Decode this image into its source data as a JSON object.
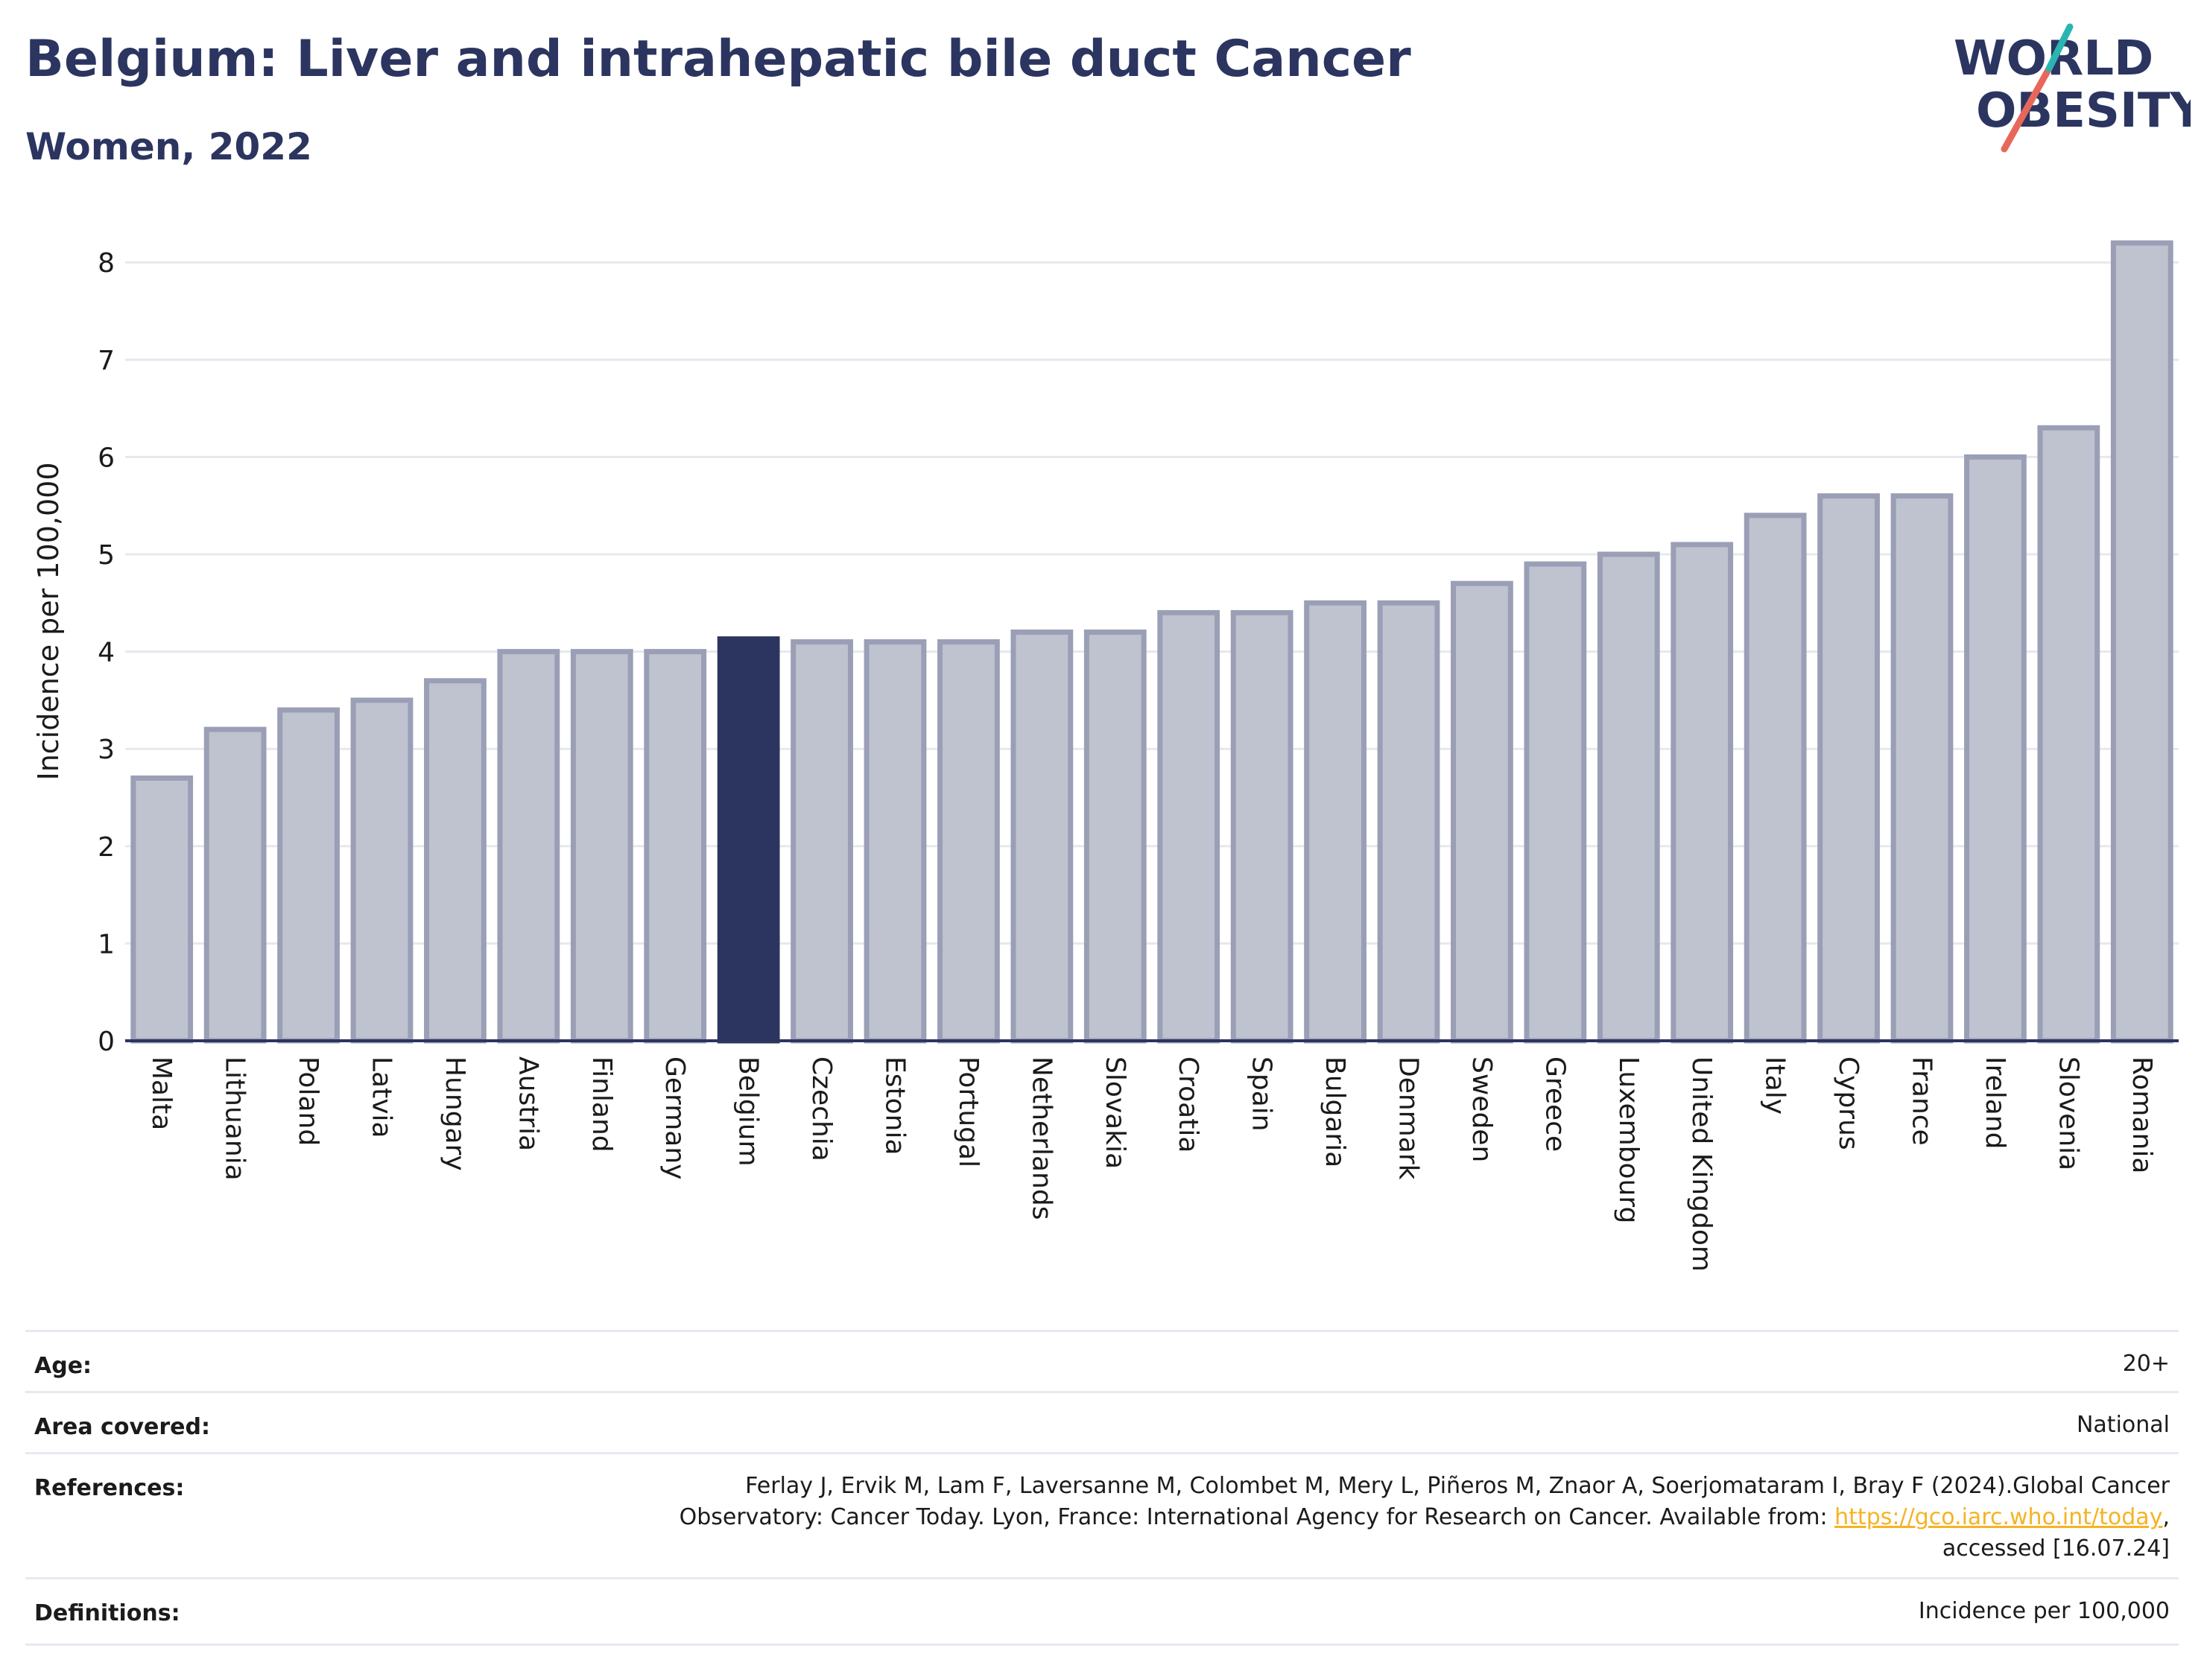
{
  "header": {
    "title": "Belgium: Liver and intrahepatic bile duct Cancer",
    "subtitle": "Women, 2022"
  },
  "logo": {
    "line1": "WORLD",
    "line2": "OBESITY"
  },
  "colors": {
    "highlight": "#2b3560",
    "bar_fill": "#bfc2cf",
    "bar_stroke": "#9a9fb6",
    "grid": "#e6e8ee"
  },
  "chart_data": {
    "type": "bar",
    "ylabel": "Incidence per 100,000",
    "ylim": [
      0,
      8.4
    ],
    "yticks": [
      0,
      1,
      2,
      3,
      4,
      5,
      6,
      7,
      8
    ],
    "grid": true,
    "highlight": "Belgium",
    "categories": [
      "Malta",
      "Lithuania",
      "Poland",
      "Latvia",
      "Hungary",
      "Austria",
      "Finland",
      "Germany",
      "Belgium",
      "Czechia",
      "Estonia",
      "Portugal",
      "Netherlands",
      "Slovakia",
      "Croatia",
      "Spain",
      "Bulgaria",
      "Denmark",
      "Sweden",
      "Greece",
      "Luxembourg",
      "United Kingdom",
      "Italy",
      "Cyprus",
      "France",
      "Ireland",
      "Slovenia",
      "Romania"
    ],
    "values": [
      2.7,
      3.2,
      3.4,
      3.5,
      3.7,
      4.0,
      4.0,
      4.0,
      4.13,
      4.1,
      4.1,
      4.1,
      4.2,
      4.2,
      4.4,
      4.4,
      4.5,
      4.5,
      4.7,
      4.9,
      5.0,
      5.1,
      5.4,
      5.6,
      5.6,
      6.0,
      6.3,
      8.2
    ]
  },
  "meta": {
    "age": {
      "label": "Age:",
      "value": "20+"
    },
    "area": {
      "label": "Area covered:",
      "value": "National"
    },
    "references": {
      "label": "References:",
      "line1": "Ferlay J, Ervik M, Lam F, Laversanne M, Colombet M, Mery L, Piñeros M, Znaor A, Soerjomataram I, Bray F (2024).Global Cancer",
      "line2_prefix": "Observatory: Cancer Today. Lyon, France: International Agency for Research on Cancer. Available from: ",
      "link": "https://gco.iarc.who.int/today",
      "line2_suffix": ",",
      "line3": "accessed [16.07.24]"
    },
    "definitions": {
      "label": "Definitions:",
      "value": "Incidence per 100,000"
    }
  }
}
